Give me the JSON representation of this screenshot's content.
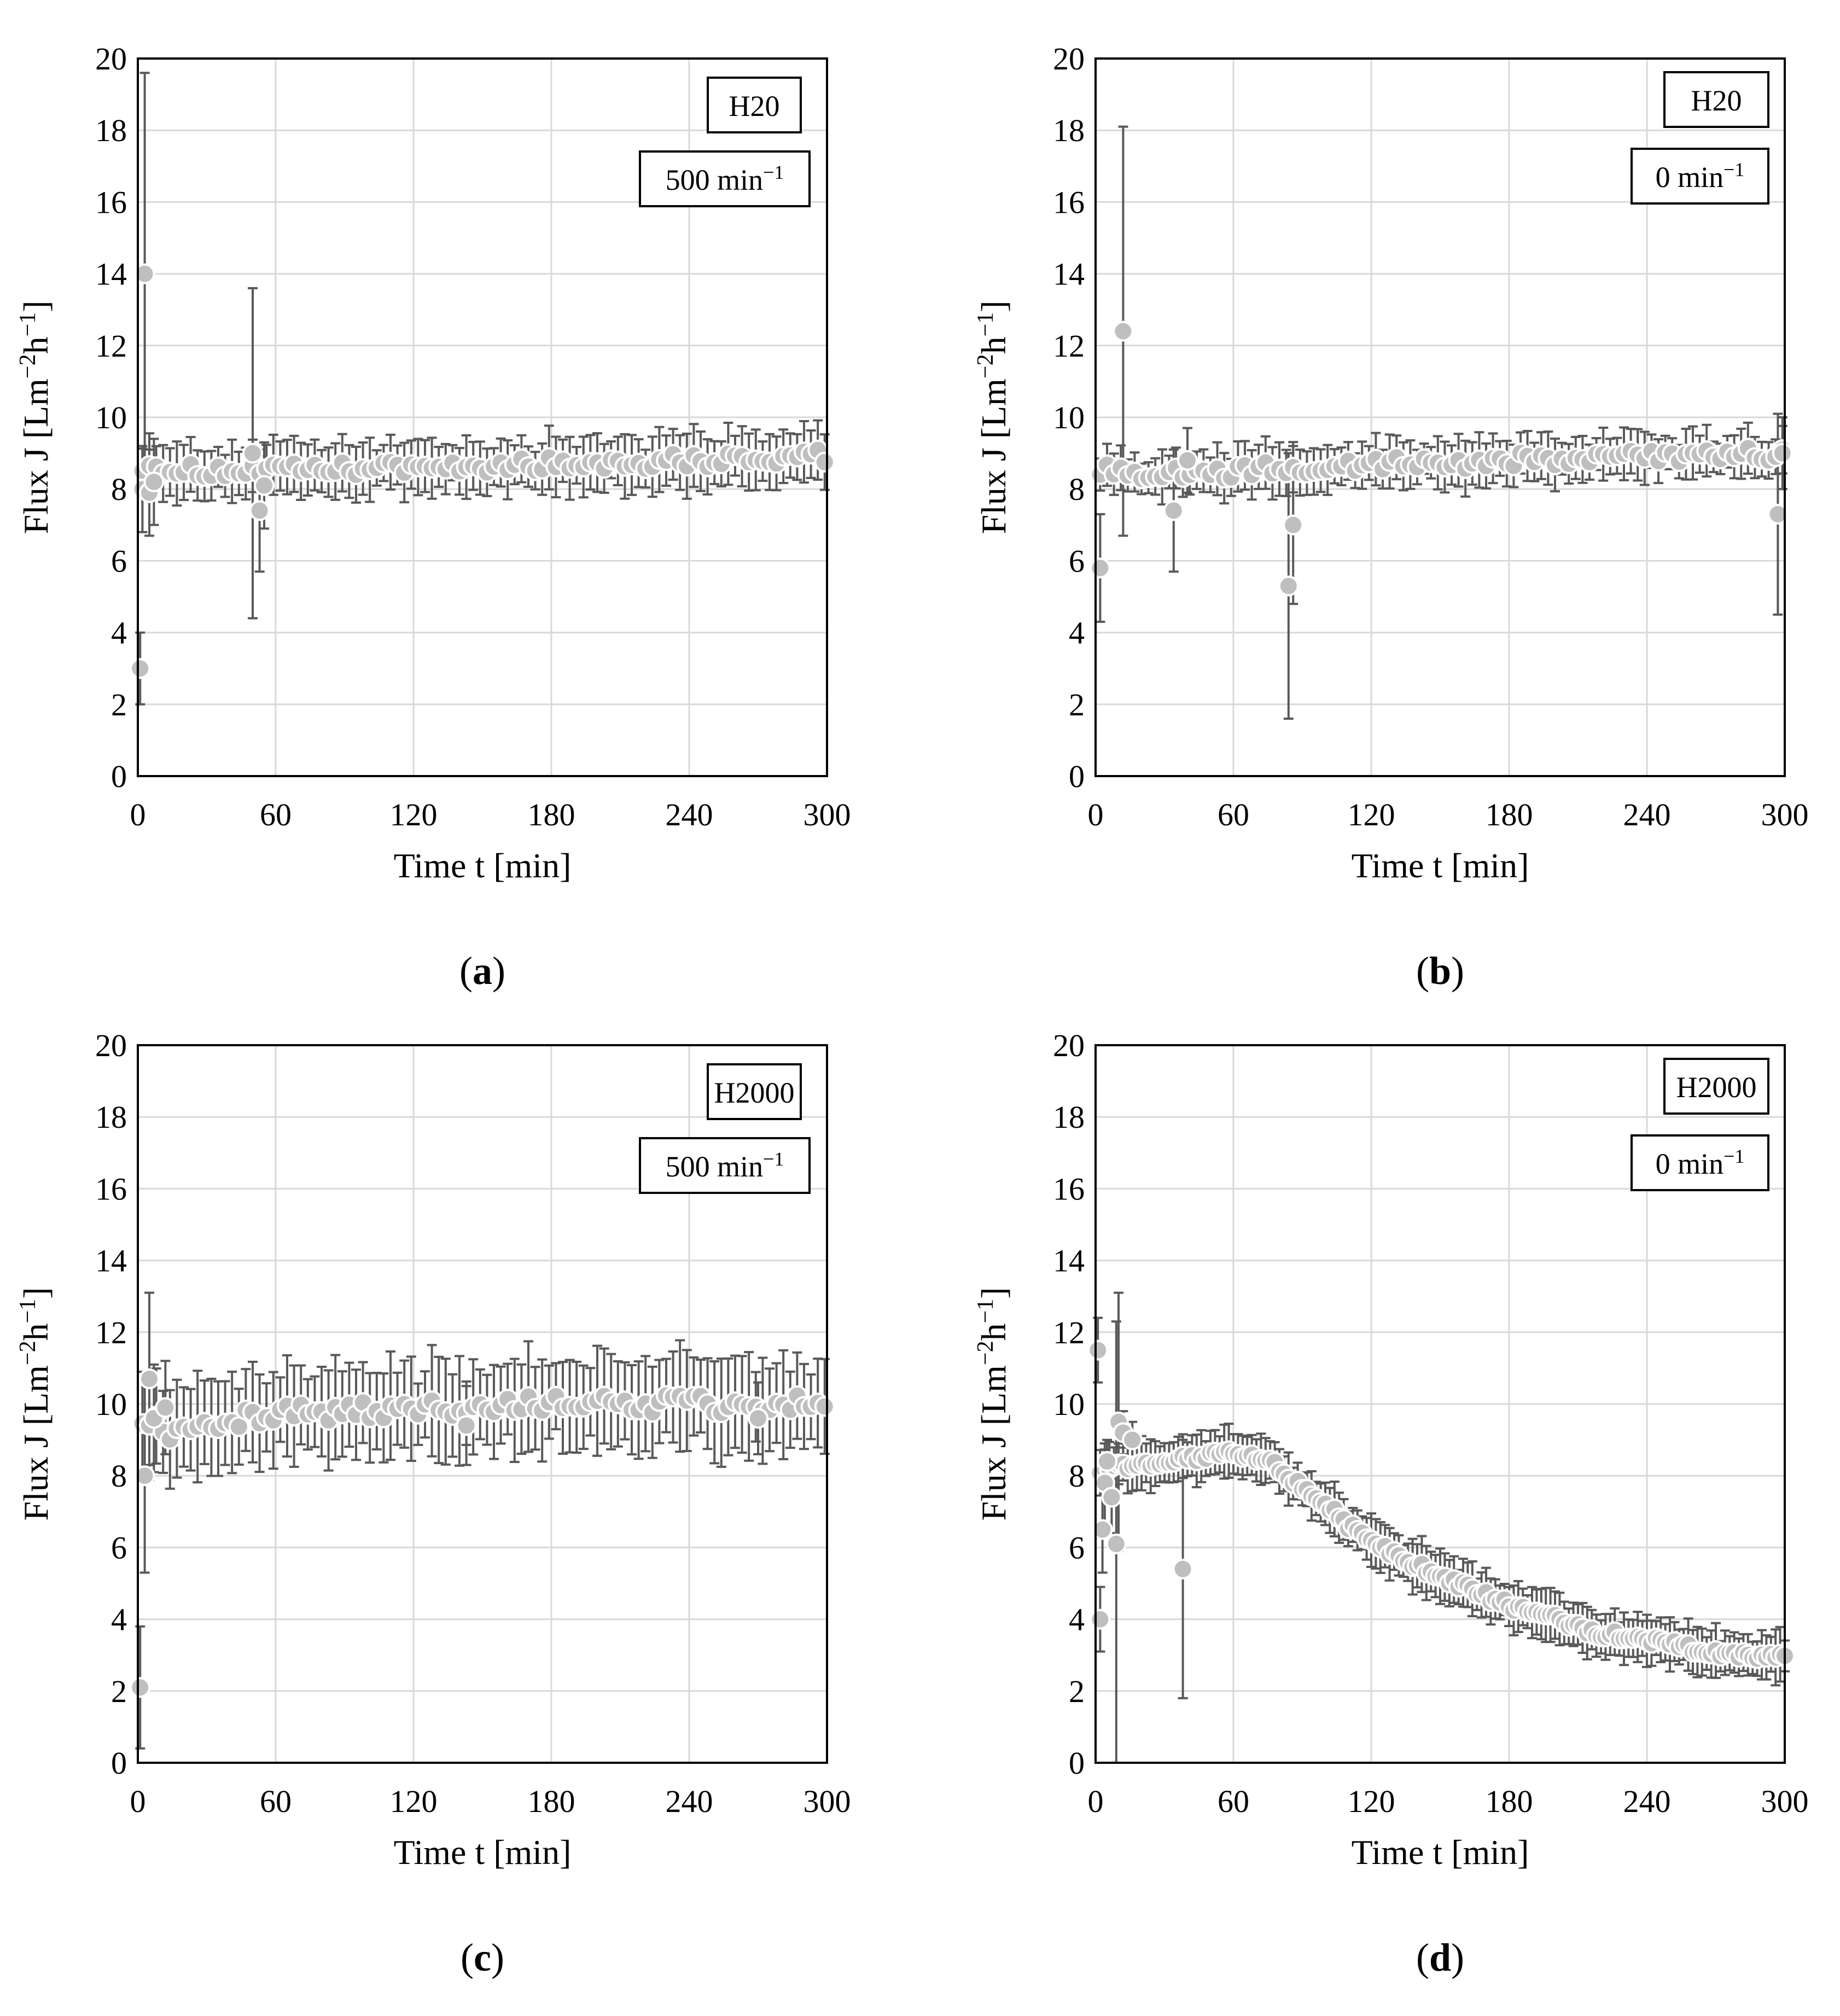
{
  "colors": {
    "grid": "#d9d9d9",
    "frame": "#000000",
    "errorbar": "#595959",
    "marker_fill": "#bfbfbf",
    "marker_stroke": "#ffffff"
  },
  "chart_data": [
    {
      "panel_label": "a",
      "type": "scatter",
      "title": "",
      "xlabel": "Time t [min]",
      "ylabel": "Flux J [Lm−2h−1]",
      "ylabel_parts": {
        "base": "Flux J [Lm",
        "sup1": "−2",
        "mid": "h",
        "sup2": "−1",
        "end": "]"
      },
      "xlim": [
        0,
        300
      ],
      "ylim": [
        0,
        20
      ],
      "xticks": [
        0,
        60,
        120,
        180,
        240,
        300
      ],
      "yticks": [
        0,
        2,
        4,
        6,
        8,
        10,
        12,
        14,
        16,
        18,
        20
      ],
      "grid": true,
      "annotations": [
        {
          "text": "H20",
          "kind": "plain",
          "position": "top-right"
        },
        {
          "text": "500 min",
          "sup": "−1",
          "kind": "speed",
          "position": "top-right"
        }
      ],
      "series": [
        {
          "name": "Flux",
          "trend": {
            "points": [
              [
                4,
                8.7
              ],
              [
                20,
                8.5
              ],
              [
                60,
                8.5
              ],
              [
                120,
                8.6
              ],
              [
                180,
                8.7
              ],
              [
                240,
                8.8
              ],
              [
                300,
                8.9
              ]
            ],
            "err": 0.7,
            "step": 3,
            "jitter": 0.2
          },
          "x": [
            1,
            2,
            3,
            5,
            7,
            50,
            53,
            55
          ],
          "y": [
            3.0,
            8.0,
            14.0,
            7.9,
            8.2,
            9.0,
            7.4,
            8.1
          ],
          "err": [
            1.0,
            1.2,
            5.6,
            1.2,
            1.2,
            4.6,
            1.7,
            1.2
          ]
        }
      ]
    },
    {
      "panel_label": "b",
      "type": "scatter",
      "title": "",
      "xlabel": "Time t [min]",
      "ylabel": "Flux J [Lm−2h−1]",
      "ylabel_parts": {
        "base": "Flux J [Lm",
        "sup1": "−2",
        "mid": "h",
        "sup2": "−1",
        "end": "]"
      },
      "xlim": [
        0,
        300
      ],
      "ylim": [
        0,
        20
      ],
      "xticks": [
        0,
        60,
        120,
        180,
        240,
        300
      ],
      "yticks": [
        0,
        2,
        4,
        6,
        8,
        10,
        12,
        14,
        16,
        18,
        20
      ],
      "grid": true,
      "annotations": [
        {
          "text": "H20",
          "kind": "plain",
          "position": "top-right"
        },
        {
          "text": "0 min",
          "sup": "−1",
          "kind": "speed",
          "position": "top-right"
        }
      ],
      "series": [
        {
          "name": "Flux",
          "trend": {
            "points": [
              [
                4,
                8.6
              ],
              [
                30,
                8.4
              ],
              [
                60,
                8.5
              ],
              [
                120,
                8.7
              ],
              [
                180,
                8.8
              ],
              [
                240,
                8.9
              ],
              [
                300,
                9.0
              ]
            ],
            "err": 0.6,
            "step": 3,
            "jitter": 0.2
          },
          "x": [
            2,
            12,
            34,
            40,
            84,
            86,
            297,
            299
          ],
          "y": [
            5.8,
            12.4,
            7.4,
            8.8,
            5.3,
            7.0,
            7.3,
            9.0
          ],
          "err": [
            1.5,
            5.7,
            1.7,
            0.9,
            3.7,
            2.2,
            2.8,
            1.0
          ]
        }
      ]
    },
    {
      "panel_label": "c",
      "type": "scatter",
      "title": "",
      "xlabel": "Time t [min]",
      "ylabel": "Flux J [Lm−2h−1]",
      "ylabel_parts": {
        "base": "Flux J [Lm",
        "sup1": "−2",
        "mid": "h",
        "sup2": "−1",
        "end": "]"
      },
      "xlim": [
        0,
        300
      ],
      "ylim": [
        0,
        20
      ],
      "xticks": [
        0,
        60,
        120,
        180,
        240,
        300
      ],
      "yticks": [
        0,
        2,
        4,
        6,
        8,
        10,
        12,
        14,
        16,
        18,
        20
      ],
      "grid": true,
      "annotations": [
        {
          "text": "H2000",
          "kind": "plain",
          "position": "top-right"
        },
        {
          "text": "500 min",
          "sup": "−1",
          "kind": "speed",
          "position": "top-right"
        }
      ],
      "series": [
        {
          "name": "Flux",
          "trend": {
            "points": [
              [
                4,
                9.7
              ],
              [
                15,
                9.2
              ],
              [
                30,
                9.5
              ],
              [
                60,
                9.7
              ],
              [
                120,
                9.9
              ],
              [
                180,
                10.0
              ],
              [
                240,
                10.0
              ],
              [
                300,
                10.0
              ]
            ],
            "err": 1.2,
            "step": 3,
            "jitter": 0.25
          },
          "x": [
            1,
            3,
            5,
            7,
            12,
            143,
            270
          ],
          "y": [
            2.1,
            8.0,
            10.7,
            9.6,
            9.9,
            9.4,
            9.6
          ],
          "err": [
            1.7,
            2.7,
            2.4,
            1.5,
            1.3,
            1.1,
            1.0
          ]
        }
      ]
    },
    {
      "panel_label": "d",
      "type": "scatter",
      "title": "",
      "xlabel": "Time t [min]",
      "ylabel": "Flux J [Lm−2h−1]",
      "ylabel_parts": {
        "base": "Flux J [Lm",
        "sup1": "−2",
        "mid": "h",
        "sup2": "−1",
        "end": "]"
      },
      "xlim": [
        0,
        300
      ],
      "ylim": [
        0,
        20
      ],
      "xticks": [
        0,
        60,
        120,
        180,
        240,
        300
      ],
      "yticks": [
        0,
        2,
        4,
        6,
        8,
        10,
        12,
        14,
        16,
        18,
        20
      ],
      "grid": true,
      "annotations": [
        {
          "text": "H2000",
          "kind": "plain",
          "position": "top-right"
        },
        {
          "text": "0 min",
          "sup": "−1",
          "kind": "speed",
          "position": "top-right"
        }
      ],
      "series": [
        {
          "name": "Flux",
          "trend": {
            "points": [
              [
                6,
                8.2
              ],
              [
                20,
                8.3
              ],
              [
                40,
                8.5
              ],
              [
                60,
                8.6
              ],
              [
                75,
                8.4
              ],
              [
                90,
                7.7
              ],
              [
                105,
                6.9
              ],
              [
                120,
                6.1
              ],
              [
                140,
                5.5
              ],
              [
                160,
                4.9
              ],
              [
                180,
                4.4
              ],
              [
                200,
                4.0
              ],
              [
                220,
                3.6
              ],
              [
                240,
                3.4
              ],
              [
                260,
                3.2
              ],
              [
                280,
                3.0
              ],
              [
                300,
                3.0
              ]
            ],
            "err": 0.6,
            "step": 2,
            "jitter": 0.12
          },
          "x": [
            1,
            2,
            3,
            4,
            5,
            7,
            9,
            10,
            12,
            16,
            38
          ],
          "y": [
            11.5,
            4.0,
            6.5,
            7.8,
            8.4,
            7.4,
            6.1,
            9.5,
            9.2,
            9.0,
            5.4
          ],
          "err": [
            0.9,
            0.9,
            1.2,
            1.1,
            0.6,
            1.0,
            6.2,
            3.6,
            0.6,
            0.5,
            3.6
          ]
        }
      ]
    }
  ]
}
